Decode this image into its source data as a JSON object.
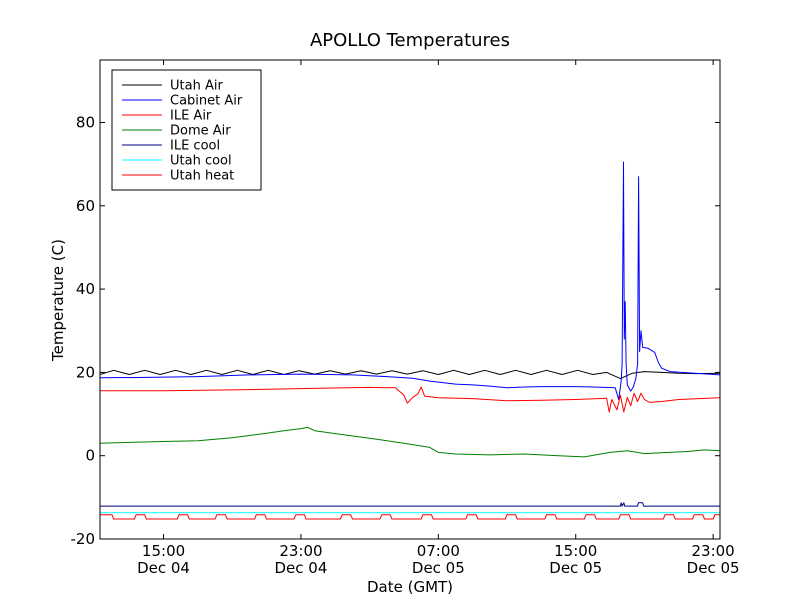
{
  "chart_data": {
    "type": "line",
    "title": "APOLLO Temperatures",
    "xlabel": "Date (GMT)",
    "ylabel": "Temperature (C)",
    "xlim": [
      11.3,
      47.4
    ],
    "ylim": [
      -20,
      95
    ],
    "grid": false,
    "legend_position": "upper-left",
    "x_ticks": [
      {
        "value": 15,
        "time": "15:00",
        "date": "Dec 04"
      },
      {
        "value": 23,
        "time": "23:00",
        "date": "Dec 04"
      },
      {
        "value": 31,
        "time": "07:00",
        "date": "Dec 05"
      },
      {
        "value": 39,
        "time": "15:00",
        "date": "Dec 05"
      },
      {
        "value": 47,
        "time": "23:00",
        "date": "Dec 05"
      }
    ],
    "y_ticks": [
      {
        "value": -20,
        "label": "-20"
      },
      {
        "value": 0,
        "label": "0"
      },
      {
        "value": 20,
        "label": "20"
      },
      {
        "value": 40,
        "label": "40"
      },
      {
        "value": 60,
        "label": "60"
      },
      {
        "value": 80,
        "label": "80"
      }
    ],
    "series": [
      {
        "name": "Utah Air",
        "color": "#000000",
        "points": [
          [
            11.3,
            19.5
          ],
          [
            12.1,
            20.5
          ],
          [
            13.0,
            19.5
          ],
          [
            13.9,
            20.5
          ],
          [
            14.8,
            19.5
          ],
          [
            15.7,
            20.5
          ],
          [
            16.6,
            19.5
          ],
          [
            17.5,
            20.5
          ],
          [
            18.4,
            19.5
          ],
          [
            19.3,
            20.5
          ],
          [
            20.2,
            19.5
          ],
          [
            21.1,
            20.5
          ],
          [
            22.0,
            19.5
          ],
          [
            22.9,
            20.4
          ],
          [
            23.8,
            19.6
          ],
          [
            24.7,
            20.4
          ],
          [
            25.6,
            19.6
          ],
          [
            26.5,
            20.4
          ],
          [
            27.4,
            19.6
          ],
          [
            28.3,
            20.4
          ],
          [
            29.2,
            19.6
          ],
          [
            30.1,
            20.4
          ],
          [
            31.0,
            19.5
          ],
          [
            31.9,
            20.5
          ],
          [
            32.8,
            19.5
          ],
          [
            33.7,
            20.5
          ],
          [
            34.6,
            19.5
          ],
          [
            35.5,
            20.5
          ],
          [
            36.4,
            19.5
          ],
          [
            37.3,
            20.5
          ],
          [
            38.2,
            19.5
          ],
          [
            39.1,
            20.5
          ],
          [
            40.0,
            19.5
          ],
          [
            40.8,
            20.0
          ],
          [
            41.6,
            18.5
          ],
          [
            42.3,
            19.8
          ],
          [
            43.0,
            20.2
          ],
          [
            44.0,
            20.0
          ],
          [
            45.0,
            19.8
          ],
          [
            46.0,
            19.7
          ],
          [
            47.4,
            19.8
          ]
        ]
      },
      {
        "name": "Cabinet Air",
        "color": "#0000ff",
        "points": [
          [
            11.3,
            18.7
          ],
          [
            14,
            18.8
          ],
          [
            17,
            19.0
          ],
          [
            20,
            19.4
          ],
          [
            23,
            19.6
          ],
          [
            26,
            19.4
          ],
          [
            28,
            19.0
          ],
          [
            29.5,
            18.6
          ],
          [
            30.5,
            17.9
          ],
          [
            32,
            17.2
          ],
          [
            33,
            17.0
          ],
          [
            34,
            16.7
          ],
          [
            35,
            16.3
          ],
          [
            36,
            16.5
          ],
          [
            37,
            16.6
          ],
          [
            38,
            16.6
          ],
          [
            39,
            16.6
          ],
          [
            40,
            16.5
          ],
          [
            41.3,
            16.3
          ],
          [
            41.5,
            13.5
          ],
          [
            41.65,
            18.0
          ],
          [
            41.7,
            22.0
          ],
          [
            41.78,
            70.5
          ],
          [
            41.83,
            28.0
          ],
          [
            41.88,
            37.0
          ],
          [
            41.93,
            22.0
          ],
          [
            42.0,
            17.0
          ],
          [
            42.2,
            15.5
          ],
          [
            42.35,
            16.5
          ],
          [
            42.5,
            18.5
          ],
          [
            42.6,
            22.0
          ],
          [
            42.66,
            67.0
          ],
          [
            42.72,
            25.0
          ],
          [
            42.8,
            30.0
          ],
          [
            42.9,
            26.0
          ],
          [
            43.2,
            25.8
          ],
          [
            43.6,
            24.8
          ],
          [
            43.8,
            22.5
          ],
          [
            44.0,
            21.0
          ],
          [
            44.5,
            20.2
          ],
          [
            45.5,
            19.9
          ],
          [
            47.4,
            19.4
          ]
        ]
      },
      {
        "name": "ILE Air",
        "color": "#ff0000",
        "points": [
          [
            11.3,
            15.6
          ],
          [
            15,
            15.6
          ],
          [
            19,
            15.8
          ],
          [
            23,
            16.1
          ],
          [
            27,
            16.4
          ],
          [
            28.5,
            16.3
          ],
          [
            29.0,
            14.5
          ],
          [
            29.2,
            12.6
          ],
          [
            29.5,
            14.0
          ],
          [
            29.8,
            14.8
          ],
          [
            30.0,
            16.5
          ],
          [
            30.2,
            14.3
          ],
          [
            31,
            13.9
          ],
          [
            33,
            13.7
          ],
          [
            35,
            13.2
          ],
          [
            37,
            13.3
          ],
          [
            39,
            13.5
          ],
          [
            40.8,
            13.8
          ],
          [
            40.95,
            10.5
          ],
          [
            41.1,
            13.5
          ],
          [
            41.4,
            11.0
          ],
          [
            41.6,
            14.5
          ],
          [
            41.8,
            10.5
          ],
          [
            42.0,
            14.0
          ],
          [
            42.2,
            12.0
          ],
          [
            42.4,
            15.0
          ],
          [
            42.6,
            13.0
          ],
          [
            42.8,
            15.0
          ],
          [
            43.0,
            13.5
          ],
          [
            43.3,
            12.8
          ],
          [
            44,
            13.0
          ],
          [
            45,
            13.5
          ],
          [
            47.4,
            13.9
          ]
        ]
      },
      {
        "name": "Dome Air",
        "color": "#008000",
        "points": [
          [
            11.3,
            3.0
          ],
          [
            13,
            3.2
          ],
          [
            15,
            3.4
          ],
          [
            17,
            3.6
          ],
          [
            19,
            4.3
          ],
          [
            21,
            5.4
          ],
          [
            22,
            6.0
          ],
          [
            23,
            6.5
          ],
          [
            23.4,
            6.8
          ],
          [
            23.8,
            6.0
          ],
          [
            25,
            5.3
          ],
          [
            27,
            4.2
          ],
          [
            29,
            3.0
          ],
          [
            30.5,
            2.0
          ],
          [
            31.0,
            0.8
          ],
          [
            32,
            0.4
          ],
          [
            34,
            0.2
          ],
          [
            36,
            0.4
          ],
          [
            38,
            0.0
          ],
          [
            39.5,
            -0.3
          ],
          [
            41,
            0.8
          ],
          [
            42,
            1.2
          ],
          [
            43,
            0.5
          ],
          [
            44,
            0.7
          ],
          [
            45.5,
            1.0
          ],
          [
            46.5,
            1.4
          ],
          [
            47.4,
            1.2
          ]
        ]
      },
      {
        "name": "ILE cool",
        "color": "#000080",
        "points": [
          [
            11.3,
            -12.1
          ],
          [
            41.6,
            -12.1
          ],
          [
            41.65,
            -11.3
          ],
          [
            41.7,
            -12.1
          ],
          [
            41.8,
            -11.3
          ],
          [
            41.85,
            -12.1
          ],
          [
            42.6,
            -12.1
          ],
          [
            42.65,
            -11.3
          ],
          [
            42.9,
            -11.3
          ],
          [
            42.95,
            -12.1
          ],
          [
            47.4,
            -12.1
          ]
        ]
      },
      {
        "name": "Utah cool",
        "color": "#00ffff",
        "points": [
          [
            11.3,
            -13.7
          ],
          [
            47.4,
            -13.7
          ]
        ]
      },
      {
        "name": "Utah heat",
        "color": "#ff0000",
        "step": true,
        "points": [
          [
            11.3,
            -14.2
          ],
          [
            12.0,
            -14.2
          ],
          [
            12.1,
            -15.2
          ],
          [
            13.3,
            -15.2
          ],
          [
            13.4,
            -14.2
          ],
          [
            13.9,
            -14.2
          ],
          [
            14.0,
            -15.2
          ],
          [
            15.8,
            -15.2
          ],
          [
            15.9,
            -14.2
          ],
          [
            16.4,
            -14.2
          ],
          [
            16.5,
            -15.2
          ],
          [
            18.0,
            -15.2
          ],
          [
            18.1,
            -14.2
          ],
          [
            18.6,
            -14.2
          ],
          [
            18.7,
            -15.2
          ],
          [
            20.3,
            -15.2
          ],
          [
            20.4,
            -14.2
          ],
          [
            20.9,
            -14.2
          ],
          [
            21.0,
            -15.2
          ],
          [
            22.6,
            -15.2
          ],
          [
            22.7,
            -14.2
          ],
          [
            23.2,
            -14.2
          ],
          [
            23.3,
            -15.2
          ],
          [
            25.3,
            -15.2
          ],
          [
            25.4,
            -14.2
          ],
          [
            25.9,
            -14.2
          ],
          [
            26.0,
            -15.2
          ],
          [
            27.6,
            -15.2
          ],
          [
            27.7,
            -14.2
          ],
          [
            28.2,
            -14.2
          ],
          [
            28.3,
            -15.2
          ],
          [
            30.0,
            -15.2
          ],
          [
            30.1,
            -14.2
          ],
          [
            30.6,
            -14.2
          ],
          [
            30.7,
            -15.2
          ],
          [
            32.6,
            -15.2
          ],
          [
            32.7,
            -14.2
          ],
          [
            33.2,
            -14.2
          ],
          [
            33.3,
            -15.2
          ],
          [
            34.9,
            -15.2
          ],
          [
            35.0,
            -14.2
          ],
          [
            35.5,
            -14.2
          ],
          [
            35.6,
            -15.2
          ],
          [
            37.2,
            -15.2
          ],
          [
            37.3,
            -14.2
          ],
          [
            37.8,
            -14.2
          ],
          [
            37.9,
            -15.2
          ],
          [
            39.5,
            -15.2
          ],
          [
            39.6,
            -14.2
          ],
          [
            40.1,
            -14.2
          ],
          [
            40.2,
            -15.2
          ],
          [
            41.5,
            -15.2
          ],
          [
            41.6,
            -14.2
          ],
          [
            42.1,
            -14.2
          ],
          [
            42.2,
            -15.2
          ],
          [
            44.1,
            -15.2
          ],
          [
            44.2,
            -14.2
          ],
          [
            44.7,
            -14.2
          ],
          [
            44.8,
            -15.2
          ],
          [
            45.8,
            -15.2
          ],
          [
            45.9,
            -14.2
          ],
          [
            46.4,
            -14.2
          ],
          [
            46.5,
            -15.2
          ],
          [
            47.0,
            -15.2
          ],
          [
            47.1,
            -14.2
          ],
          [
            47.4,
            -14.2
          ]
        ]
      }
    ]
  }
}
